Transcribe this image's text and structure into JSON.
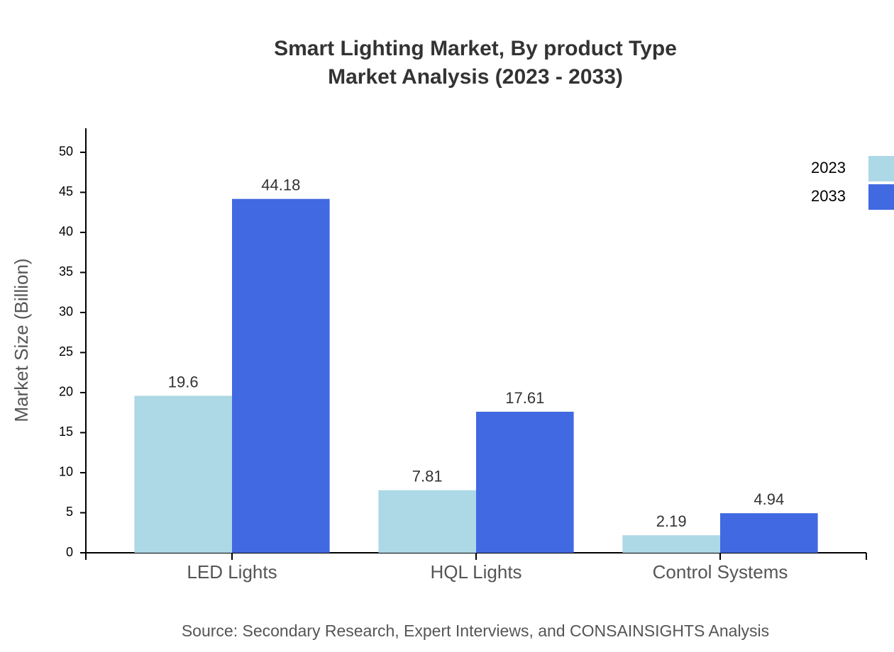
{
  "chart_data": {
    "type": "bar",
    "title": "Smart Lighting Market, By product Type",
    "subtitle": "Market Analysis (2023 - 2033)",
    "y_label": "Market Size (Billion)",
    "source": "Source: Secondary Research, Expert Interviews, and CONSAINSIGHTS Analysis",
    "categories": [
      "LED Lights",
      "HQL Lights",
      "Control Systems"
    ],
    "series": [
      {
        "name": "2023",
        "color": "#add8e6",
        "values": [
          19.6,
          7.81,
          2.19
        ]
      },
      {
        "name": "2033",
        "color": "#4169e1",
        "values": [
          44.18,
          17.61,
          4.94
        ]
      }
    ],
    "ylim": [
      0,
      53
    ],
    "yticks": [
      0,
      5,
      10,
      15,
      20,
      25,
      30,
      35,
      40,
      45,
      50
    ],
    "legend": "top-right"
  }
}
